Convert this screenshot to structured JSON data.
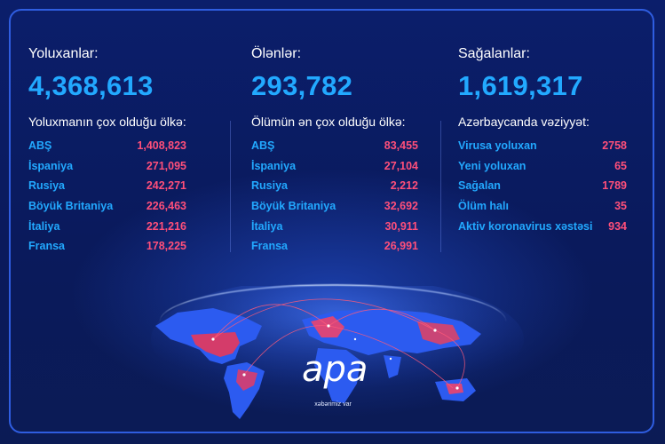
{
  "col1": {
    "header": "Yoluxanlar:",
    "total": "4,368,613",
    "subheader": "Yoluxmanın çox olduğu ölkə:",
    "rows": [
      {
        "name": "ABŞ",
        "value": "1,408,823"
      },
      {
        "name": "İspaniya",
        "value": "271,095"
      },
      {
        "name": "Rusiya",
        "value": "242,271"
      },
      {
        "name": "Böyük Britaniya",
        "value": "226,463"
      },
      {
        "name": "İtaliya",
        "value": "221,216"
      },
      {
        "name": "Fransa",
        "value": "178,225"
      }
    ]
  },
  "col2": {
    "header": "Ölənlər:",
    "total": "293,782",
    "subheader": "Ölümün ən çox olduğu ölkə:",
    "rows": [
      {
        "name": "ABŞ",
        "value": "83,455"
      },
      {
        "name": "İspaniya",
        "value": "27,104"
      },
      {
        "name": "Rusiya",
        "value": "2,212"
      },
      {
        "name": "Böyük Britaniya",
        "value": "32,692"
      },
      {
        "name": "İtaliya",
        "value": "30,911"
      },
      {
        "name": "Fransa",
        "value": "26,991"
      }
    ]
  },
  "col3": {
    "header": "Sağalanlar:",
    "total": "1,619,317",
    "subheader": "Azərbaycanda vəziyyət:",
    "rows": [
      {
        "name": "Virusa yoluxan",
        "value": "2758"
      },
      {
        "name": "Yeni yoluxan",
        "value": "65"
      },
      {
        "name": "Sağalan",
        "value": "1789"
      },
      {
        "name": "Ölüm halı",
        "value": "35"
      },
      {
        "name": "Aktiv koronavirus xəstəsi",
        "value": "934"
      }
    ]
  },
  "logo": {
    "text": "apa",
    "tagline": "xəbərimiz var"
  },
  "colors": {
    "accent": "#22a9ff",
    "value": "#ff4f7a",
    "background": "#0a1a5c",
    "frame": "#2f5de0"
  }
}
